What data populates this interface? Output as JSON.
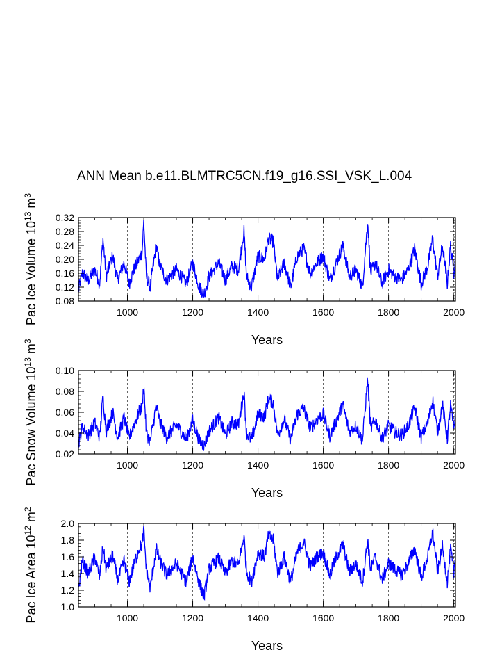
{
  "figure": {
    "title": "ANN Mean b.e11.BLMTRC5CN.f19_g16.SSI_VSK_L.004"
  },
  "chart_data": [
    {
      "type": "line",
      "name": "pac-ice-volume",
      "ylabel": {
        "prefix": "Pac Ice Volume 10",
        "exp": "13",
        "unit": " m",
        "unit_exp": "3"
      },
      "xlabel": "Years",
      "xlim": [
        850,
        2005
      ],
      "ylim": [
        0.08,
        0.32
      ],
      "xticks": [
        1000,
        1200,
        1400,
        1600,
        1800,
        2000
      ],
      "xtick_labels": [
        "1000",
        "1200",
        "1400",
        "1600",
        "1800",
        "2000"
      ],
      "yticks": [
        0.08,
        0.12,
        0.16,
        0.2,
        0.24,
        0.28,
        0.32
      ],
      "ytick_labels": [
        "0.08",
        "0.12",
        "0.16",
        "0.20",
        "0.24",
        "0.28",
        "0.32"
      ],
      "grid_x": true,
      "series_color": "#0000ff",
      "series": [
        {
          "name": "Pac Ice Volume",
          "keypoints": [
            [
              850,
              0.11
            ],
            [
              862,
              0.16
            ],
            [
              880,
              0.14
            ],
            [
              900,
              0.17
            ],
            [
              915,
              0.13
            ],
            [
              925,
              0.26
            ],
            [
              935,
              0.15
            ],
            [
              955,
              0.21
            ],
            [
              970,
              0.14
            ],
            [
              990,
              0.19
            ],
            [
              1005,
              0.13
            ],
            [
              1020,
              0.17
            ],
            [
              1035,
              0.2
            ],
            [
              1045,
              0.22
            ],
            [
              1050,
              0.31
            ],
            [
              1058,
              0.15
            ],
            [
              1070,
              0.12
            ],
            [
              1088,
              0.24
            ],
            [
              1100,
              0.18
            ],
            [
              1120,
              0.14
            ],
            [
              1150,
              0.17
            ],
            [
              1180,
              0.13
            ],
            [
              1200,
              0.19
            ],
            [
              1220,
              0.12
            ],
            [
              1235,
              0.1
            ],
            [
              1250,
              0.15
            ],
            [
              1280,
              0.19
            ],
            [
              1300,
              0.14
            ],
            [
              1320,
              0.18
            ],
            [
              1340,
              0.17
            ],
            [
              1352,
              0.25
            ],
            [
              1357,
              0.28
            ],
            [
              1365,
              0.15
            ],
            [
              1380,
              0.12
            ],
            [
              1400,
              0.21
            ],
            [
              1420,
              0.2
            ],
            [
              1432,
              0.26
            ],
            [
              1447,
              0.25
            ],
            [
              1460,
              0.14
            ],
            [
              1480,
              0.19
            ],
            [
              1500,
              0.12
            ],
            [
              1520,
              0.21
            ],
            [
              1540,
              0.23
            ],
            [
              1560,
              0.16
            ],
            [
              1580,
              0.19
            ],
            [
              1600,
              0.21
            ],
            [
              1620,
              0.14
            ],
            [
              1640,
              0.19
            ],
            [
              1660,
              0.24
            ],
            [
              1680,
              0.15
            ],
            [
              1700,
              0.17
            ],
            [
              1720,
              0.12
            ],
            [
              1736,
              0.31
            ],
            [
              1745,
              0.16
            ],
            [
              1760,
              0.19
            ],
            [
              1780,
              0.13
            ],
            [
              1800,
              0.17
            ],
            [
              1820,
              0.15
            ],
            [
              1840,
              0.14
            ],
            [
              1860,
              0.17
            ],
            [
              1880,
              0.23
            ],
            [
              1900,
              0.13
            ],
            [
              1920,
              0.18
            ],
            [
              1935,
              0.26
            ],
            [
              1950,
              0.15
            ],
            [
              1965,
              0.24
            ],
            [
              1980,
              0.13
            ],
            [
              1990,
              0.24
            ],
            [
              2000,
              0.16
            ],
            [
              2005,
              0.22
            ]
          ]
        }
      ]
    },
    {
      "type": "line",
      "name": "pac-snow-volume",
      "ylabel": {
        "prefix": "Pac Snow Volume 10",
        "exp": "13",
        "unit": " m",
        "unit_exp": "3"
      },
      "xlabel": "Years",
      "xlim": [
        850,
        2005
      ],
      "ylim": [
        0.02,
        0.1
      ],
      "xticks": [
        1000,
        1200,
        1400,
        1600,
        1800,
        2000
      ],
      "xtick_labels": [
        "1000",
        "1200",
        "1400",
        "1600",
        "1800",
        "2000"
      ],
      "yticks": [
        0.02,
        0.04,
        0.06,
        0.08,
        0.1
      ],
      "ytick_labels": [
        "0.02",
        "0.04",
        "0.06",
        "0.08",
        "0.10"
      ],
      "grid_x": true,
      "series_color": "#0000ff",
      "series": [
        {
          "name": "Pac Snow Volume",
          "keypoints": [
            [
              850,
              0.03
            ],
            [
              862,
              0.046
            ],
            [
              880,
              0.038
            ],
            [
              900,
              0.05
            ],
            [
              915,
              0.036
            ],
            [
              925,
              0.075
            ],
            [
              935,
              0.042
            ],
            [
              955,
              0.06
            ],
            [
              970,
              0.036
            ],
            [
              990,
              0.055
            ],
            [
              1005,
              0.035
            ],
            [
              1020,
              0.048
            ],
            [
              1035,
              0.06
            ],
            [
              1045,
              0.065
            ],
            [
              1050,
              0.087
            ],
            [
              1058,
              0.04
            ],
            [
              1070,
              0.032
            ],
            [
              1088,
              0.066
            ],
            [
              1100,
              0.05
            ],
            [
              1120,
              0.036
            ],
            [
              1150,
              0.048
            ],
            [
              1180,
              0.034
            ],
            [
              1200,
              0.052
            ],
            [
              1220,
              0.033
            ],
            [
              1235,
              0.028
            ],
            [
              1250,
              0.042
            ],
            [
              1280,
              0.055
            ],
            [
              1300,
              0.038
            ],
            [
              1320,
              0.05
            ],
            [
              1340,
              0.048
            ],
            [
              1352,
              0.07
            ],
            [
              1357,
              0.079
            ],
            [
              1365,
              0.04
            ],
            [
              1380,
              0.033
            ],
            [
              1400,
              0.058
            ],
            [
              1420,
              0.056
            ],
            [
              1432,
              0.073
            ],
            [
              1447,
              0.069
            ],
            [
              1460,
              0.038
            ],
            [
              1480,
              0.053
            ],
            [
              1500,
              0.034
            ],
            [
              1520,
              0.058
            ],
            [
              1540,
              0.064
            ],
            [
              1560,
              0.044
            ],
            [
              1580,
              0.053
            ],
            [
              1600,
              0.058
            ],
            [
              1620,
              0.037
            ],
            [
              1640,
              0.052
            ],
            [
              1660,
              0.067
            ],
            [
              1680,
              0.041
            ],
            [
              1700,
              0.047
            ],
            [
              1720,
              0.033
            ],
            [
              1736,
              0.092
            ],
            [
              1745,
              0.044
            ],
            [
              1760,
              0.053
            ],
            [
              1780,
              0.035
            ],
            [
              1800,
              0.047
            ],
            [
              1820,
              0.041
            ],
            [
              1840,
              0.038
            ],
            [
              1860,
              0.047
            ],
            [
              1880,
              0.064
            ],
            [
              1900,
              0.036
            ],
            [
              1920,
              0.05
            ],
            [
              1935,
              0.072
            ],
            [
              1950,
              0.041
            ],
            [
              1965,
              0.067
            ],
            [
              1980,
              0.035
            ],
            [
              1990,
              0.067
            ],
            [
              2000,
              0.044
            ],
            [
              2005,
              0.06
            ]
          ]
        }
      ]
    },
    {
      "type": "line",
      "name": "pac-ice-area",
      "ylabel": {
        "prefix": "Pac Ice Area 10",
        "exp": "12",
        "unit": " m",
        "unit_exp": "2"
      },
      "xlabel": "Years",
      "xlim": [
        850,
        2005
      ],
      "ylim": [
        1.0,
        2.0
      ],
      "xticks": [
        1000,
        1200,
        1400,
        1600,
        1800,
        2000
      ],
      "xtick_labels": [
        "1000",
        "1200",
        "1400",
        "1600",
        "1800",
        "2000"
      ],
      "yticks": [
        1.0,
        1.2,
        1.4,
        1.6,
        1.8,
        2.0
      ],
      "ytick_labels": [
        "1.0",
        "1.2",
        "1.4",
        "1.6",
        "1.8",
        "2.0"
      ],
      "grid_x": true,
      "series_color": "#0000ff",
      "series": [
        {
          "name": "Pac Ice Area",
          "keypoints": [
            [
              850,
              1.2
            ],
            [
              862,
              1.55
            ],
            [
              880,
              1.4
            ],
            [
              900,
              1.6
            ],
            [
              915,
              1.35
            ],
            [
              925,
              1.72
            ],
            [
              935,
              1.45
            ],
            [
              955,
              1.62
            ],
            [
              970,
              1.32
            ],
            [
              990,
              1.55
            ],
            [
              1005,
              1.3
            ],
            [
              1020,
              1.5
            ],
            [
              1035,
              1.7
            ],
            [
              1045,
              1.75
            ],
            [
              1050,
              1.92
            ],
            [
              1058,
              1.45
            ],
            [
              1070,
              1.22
            ],
            [
              1088,
              1.7
            ],
            [
              1100,
              1.55
            ],
            [
              1120,
              1.38
            ],
            [
              1150,
              1.52
            ],
            [
              1180,
              1.3
            ],
            [
              1200,
              1.6
            ],
            [
              1220,
              1.28
            ],
            [
              1235,
              1.13
            ],
            [
              1250,
              1.45
            ],
            [
              1280,
              1.58
            ],
            [
              1300,
              1.4
            ],
            [
              1320,
              1.55
            ],
            [
              1340,
              1.5
            ],
            [
              1352,
              1.75
            ],
            [
              1357,
              1.85
            ],
            [
              1365,
              1.42
            ],
            [
              1380,
              1.3
            ],
            [
              1400,
              1.65
            ],
            [
              1420,
              1.6
            ],
            [
              1432,
              1.85
            ],
            [
              1447,
              1.8
            ],
            [
              1460,
              1.4
            ],
            [
              1480,
              1.6
            ],
            [
              1500,
              1.3
            ],
            [
              1520,
              1.65
            ],
            [
              1540,
              1.78
            ],
            [
              1560,
              1.48
            ],
            [
              1580,
              1.6
            ],
            [
              1600,
              1.65
            ],
            [
              1620,
              1.38
            ],
            [
              1640,
              1.6
            ],
            [
              1660,
              1.75
            ],
            [
              1680,
              1.42
            ],
            [
              1700,
              1.52
            ],
            [
              1720,
              1.3
            ],
            [
              1736,
              1.8
            ],
            [
              1745,
              1.45
            ],
            [
              1760,
              1.6
            ],
            [
              1780,
              1.32
            ],
            [
              1800,
              1.52
            ],
            [
              1820,
              1.45
            ],
            [
              1840,
              1.38
            ],
            [
              1860,
              1.52
            ],
            [
              1880,
              1.7
            ],
            [
              1900,
              1.35
            ],
            [
              1920,
              1.6
            ],
            [
              1935,
              1.9
            ],
            [
              1950,
              1.42
            ],
            [
              1965,
              1.72
            ],
            [
              1980,
              1.3
            ],
            [
              1990,
              1.7
            ],
            [
              2000,
              1.4
            ],
            [
              2005,
              1.65
            ]
          ]
        }
      ]
    }
  ]
}
